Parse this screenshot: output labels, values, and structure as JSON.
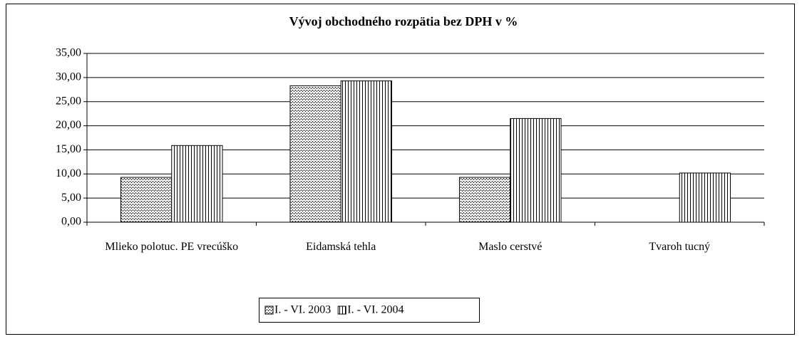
{
  "chart_data": {
    "type": "bar",
    "title": "Vývoj obchodného rozpätia bez DPH v %",
    "categories": [
      "Mlieko polotuc. PE vrecúško",
      "Eidamská tehla",
      "Maslo cerstvé",
      "Tvaroh tucný"
    ],
    "series": [
      {
        "name": "I. - VI. 2003",
        "values": [
          9.3,
          28.3,
          9.3,
          null
        ]
      },
      {
        "name": "I. - VI. 2004",
        "values": [
          15.9,
          29.3,
          21.5,
          10.2
        ]
      }
    ],
    "ylim": [
      0,
      35
    ],
    "yticks": [
      {
        "value": 0,
        "label": "0,00"
      },
      {
        "value": 5,
        "label": "5,00"
      },
      {
        "value": 10,
        "label": "10,00"
      },
      {
        "value": 15,
        "label": "15,00"
      },
      {
        "value": 20,
        "label": "20,00"
      },
      {
        "value": 25,
        "label": "25,00"
      },
      {
        "value": 30,
        "label": "30,00"
      },
      {
        "value": 35,
        "label": "35,00"
      }
    ],
    "grid": true
  }
}
